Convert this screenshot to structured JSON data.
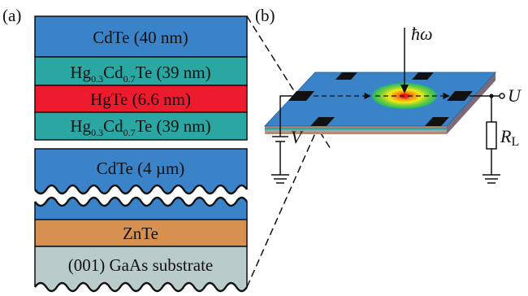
{
  "figure": {
    "panel_a_label": "(a)",
    "panel_b_label": "(b)",
    "colors": {
      "cdte": "#3a83c9",
      "hgcdte": "#2aa7a3",
      "hgte": "#ec1c2e",
      "znte": "#d6904f",
      "gaas": "#b9cbcb",
      "outline": "#111111"
    },
    "layers_top": [
      {
        "id": "cdte-cap",
        "parts": [
          {
            "t": "CdTe (40 nm)"
          }
        ]
      },
      {
        "id": "hgcdte-upper",
        "parts": [
          {
            "t": "Hg"
          },
          {
            "t": "0.3",
            "sub": true
          },
          {
            "t": "Cd"
          },
          {
            "t": "0.7",
            "sub": true
          },
          {
            "t": "Te (39 nm)"
          }
        ]
      },
      {
        "id": "hgte-well",
        "parts": [
          {
            "t": "HgTe (6.6 nm)"
          }
        ]
      },
      {
        "id": "hgcdte-lower",
        "parts": [
          {
            "t": "Hg"
          },
          {
            "t": "0.3",
            "sub": true
          },
          {
            "t": "Cd"
          },
          {
            "t": "0.7",
            "sub": true
          },
          {
            "t": "Te (39 nm)"
          }
        ]
      }
    ],
    "layers_bottom": [
      {
        "id": "cdte-buffer",
        "parts": [
          {
            "t": "CdTe (4 µm)"
          }
        ]
      },
      {
        "id": "znte",
        "parts": [
          {
            "t": "ZnTe"
          }
        ]
      },
      {
        "id": "gaas-substrate",
        "parts": [
          {
            "t": "(001) GaAs substrate"
          }
        ]
      }
    ],
    "circuit": {
      "photon_label": "ħω",
      "bias_label": "V",
      "output_label": "U",
      "load_label_main": "R",
      "load_label_sub": "L"
    }
  }
}
